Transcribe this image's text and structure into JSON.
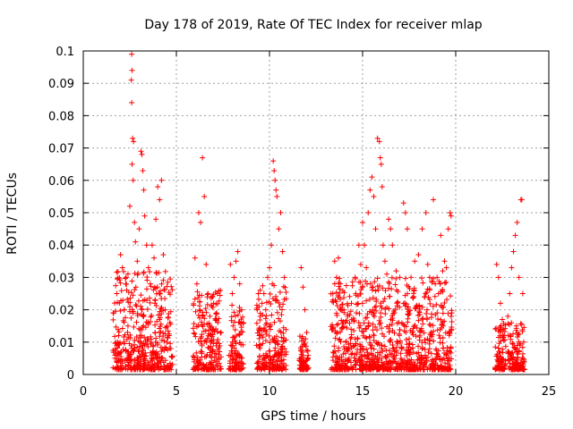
{
  "chart_data": {
    "type": "scatter",
    "title": "Day 178 of 2019, Rate Of TEC Index for receiver mlap",
    "xlabel": "GPS time / hours",
    "ylabel": "ROTI / TECUs",
    "xlim": [
      0,
      25
    ],
    "ylim": [
      0,
      0.1
    ],
    "grid": true,
    "marker": "+",
    "marker_color": "#ff0000",
    "x_ticks": [
      0,
      5,
      10,
      15,
      20,
      25
    ],
    "x_tick_labels": [
      "0",
      "5",
      "10",
      "15",
      "20",
      "25"
    ],
    "y_ticks": [
      0,
      0.01,
      0.02,
      0.03,
      0.04,
      0.05,
      0.06,
      0.07,
      0.08,
      0.09,
      0.1
    ],
    "y_tick_labels": [
      "0",
      "0.01",
      "0.02",
      "0.03",
      "0.04",
      "0.05",
      "0.06",
      "0.07",
      "0.08",
      "0.09",
      "0.1"
    ],
    "series": [
      {
        "name": "ROTI",
        "points": [
          [
            1.7,
            0.005
          ],
          [
            1.8,
            0.025
          ],
          [
            1.9,
            0.012
          ],
          [
            2.0,
            0.037
          ],
          [
            2.1,
            0.033
          ],
          [
            2.2,
            0.02
          ],
          [
            2.3,
            0.03
          ],
          [
            2.4,
            0.015
          ],
          [
            2.5,
            0.052
          ],
          [
            2.6,
            0.099
          ],
          [
            2.62,
            0.094
          ],
          [
            2.58,
            0.091
          ],
          [
            2.6,
            0.084
          ],
          [
            2.65,
            0.073
          ],
          [
            2.7,
            0.072
          ],
          [
            2.62,
            0.065
          ],
          [
            2.68,
            0.06
          ],
          [
            2.75,
            0.047
          ],
          [
            2.8,
            0.041
          ],
          [
            2.9,
            0.035
          ],
          [
            3.0,
            0.045
          ],
          [
            3.1,
            0.069
          ],
          [
            3.15,
            0.068
          ],
          [
            3.2,
            0.063
          ],
          [
            3.25,
            0.057
          ],
          [
            3.3,
            0.049
          ],
          [
            3.4,
            0.04
          ],
          [
            3.5,
            0.033
          ],
          [
            3.6,
            0.028
          ],
          [
            3.7,
            0.04
          ],
          [
            3.8,
            0.036
          ],
          [
            3.9,
            0.048
          ],
          [
            4.0,
            0.058
          ],
          [
            4.1,
            0.054
          ],
          [
            4.2,
            0.06
          ],
          [
            4.3,
            0.037
          ],
          [
            4.4,
            0.02
          ],
          [
            4.5,
            0.015
          ],
          [
            4.6,
            0.012
          ],
          [
            4.7,
            0.008
          ],
          [
            6.0,
            0.036
          ],
          [
            6.1,
            0.028
          ],
          [
            6.2,
            0.05
          ],
          [
            6.3,
            0.047
          ],
          [
            6.4,
            0.067
          ],
          [
            6.5,
            0.055
          ],
          [
            6.6,
            0.034
          ],
          [
            6.7,
            0.025
          ],
          [
            6.8,
            0.018
          ],
          [
            7.0,
            0.022
          ],
          [
            7.2,
            0.025
          ],
          [
            7.4,
            0.013
          ],
          [
            7.9,
            0.034
          ],
          [
            8.0,
            0.025
          ],
          [
            8.1,
            0.03
          ],
          [
            8.2,
            0.035
          ],
          [
            8.3,
            0.038
          ],
          [
            8.4,
            0.028
          ],
          [
            8.5,
            0.02
          ],
          [
            8.6,
            0.016
          ],
          [
            9.4,
            0.025
          ],
          [
            9.5,
            0.018
          ],
          [
            9.6,
            0.022
          ],
          [
            9.7,
            0.025
          ],
          [
            9.8,
            0.02
          ],
          [
            9.9,
            0.03
          ],
          [
            10.0,
            0.033
          ],
          [
            10.1,
            0.04
          ],
          [
            10.2,
            0.066
          ],
          [
            10.25,
            0.063
          ],
          [
            10.3,
            0.06
          ],
          [
            10.35,
            0.057
          ],
          [
            10.4,
            0.055
          ],
          [
            10.5,
            0.045
          ],
          [
            10.6,
            0.05
          ],
          [
            10.7,
            0.038
          ],
          [
            10.8,
            0.03
          ],
          [
            11.7,
            0.033
          ],
          [
            11.8,
            0.027
          ],
          [
            11.9,
            0.02
          ],
          [
            12.0,
            0.013
          ],
          [
            13.4,
            0.025
          ],
          [
            13.5,
            0.035
          ],
          [
            13.6,
            0.03
          ],
          [
            13.7,
            0.036
          ],
          [
            13.8,
            0.028
          ],
          [
            13.9,
            0.02
          ],
          [
            14.0,
            0.02
          ],
          [
            14.2,
            0.018
          ],
          [
            14.4,
            0.022
          ],
          [
            14.6,
            0.03
          ],
          [
            14.8,
            0.04
          ],
          [
            14.9,
            0.034
          ],
          [
            15.0,
            0.047
          ],
          [
            15.1,
            0.04
          ],
          [
            15.2,
            0.033
          ],
          [
            15.3,
            0.05
          ],
          [
            15.4,
            0.057
          ],
          [
            15.5,
            0.061
          ],
          [
            15.6,
            0.055
          ],
          [
            15.7,
            0.045
          ],
          [
            15.8,
            0.073
          ],
          [
            15.9,
            0.072
          ],
          [
            15.95,
            0.067
          ],
          [
            16.0,
            0.065
          ],
          [
            16.05,
            0.058
          ],
          [
            16.1,
            0.04
          ],
          [
            16.2,
            0.035
          ],
          [
            16.3,
            0.031
          ],
          [
            16.4,
            0.048
          ],
          [
            16.5,
            0.045
          ],
          [
            16.6,
            0.04
          ],
          [
            16.8,
            0.032
          ],
          [
            17.0,
            0.03
          ],
          [
            17.2,
            0.053
          ],
          [
            17.3,
            0.05
          ],
          [
            17.4,
            0.045
          ],
          [
            17.6,
            0.03
          ],
          [
            17.8,
            0.035
          ],
          [
            18.0,
            0.037
          ],
          [
            18.2,
            0.045
          ],
          [
            18.4,
            0.05
          ],
          [
            18.5,
            0.034
          ],
          [
            18.6,
            0.03
          ],
          [
            18.8,
            0.054
          ],
          [
            18.9,
            0.028
          ],
          [
            19.0,
            0.03
          ],
          [
            19.2,
            0.043
          ],
          [
            19.3,
            0.032
          ],
          [
            19.4,
            0.035
          ],
          [
            19.5,
            0.033
          ],
          [
            19.6,
            0.045
          ],
          [
            19.7,
            0.05
          ],
          [
            19.75,
            0.049
          ],
          [
            22.2,
            0.034
          ],
          [
            22.3,
            0.03
          ],
          [
            22.4,
            0.022
          ],
          [
            22.5,
            0.017
          ],
          [
            22.6,
            0.012
          ],
          [
            22.8,
            0.018
          ],
          [
            22.9,
            0.025
          ],
          [
            23.0,
            0.033
          ],
          [
            23.1,
            0.038
          ],
          [
            23.2,
            0.043
          ],
          [
            23.3,
            0.047
          ],
          [
            23.4,
            0.03
          ],
          [
            23.5,
            0.054
          ],
          [
            23.55,
            0.054
          ],
          [
            23.6,
            0.025
          ],
          [
            23.65,
            0.01
          ]
        ],
        "dense_clusters": [
          {
            "x_range": [
              1.6,
              4.8
            ],
            "y_range": [
              0.0015,
              0.032
            ]
          },
          {
            "x_range": [
              5.9,
              7.4
            ],
            "y_range": [
              0.0015,
              0.026
            ]
          },
          {
            "x_range": [
              7.8,
              8.6
            ],
            "y_range": [
              0.0015,
              0.022
            ]
          },
          {
            "x_range": [
              9.3,
              10.9
            ],
            "y_range": [
              0.0015,
              0.028
            ]
          },
          {
            "x_range": [
              11.6,
              12.1
            ],
            "y_range": [
              0.0015,
              0.012
            ]
          },
          {
            "x_range": [
              13.3,
              19.8
            ],
            "y_range": [
              0.0015,
              0.03
            ]
          },
          {
            "x_range": [
              22.1,
              22.7
            ],
            "y_range": [
              0.0015,
              0.016
            ]
          },
          {
            "x_range": [
              22.8,
              23.7
            ],
            "y_range": [
              0.0015,
              0.016
            ]
          }
        ]
      }
    ]
  }
}
